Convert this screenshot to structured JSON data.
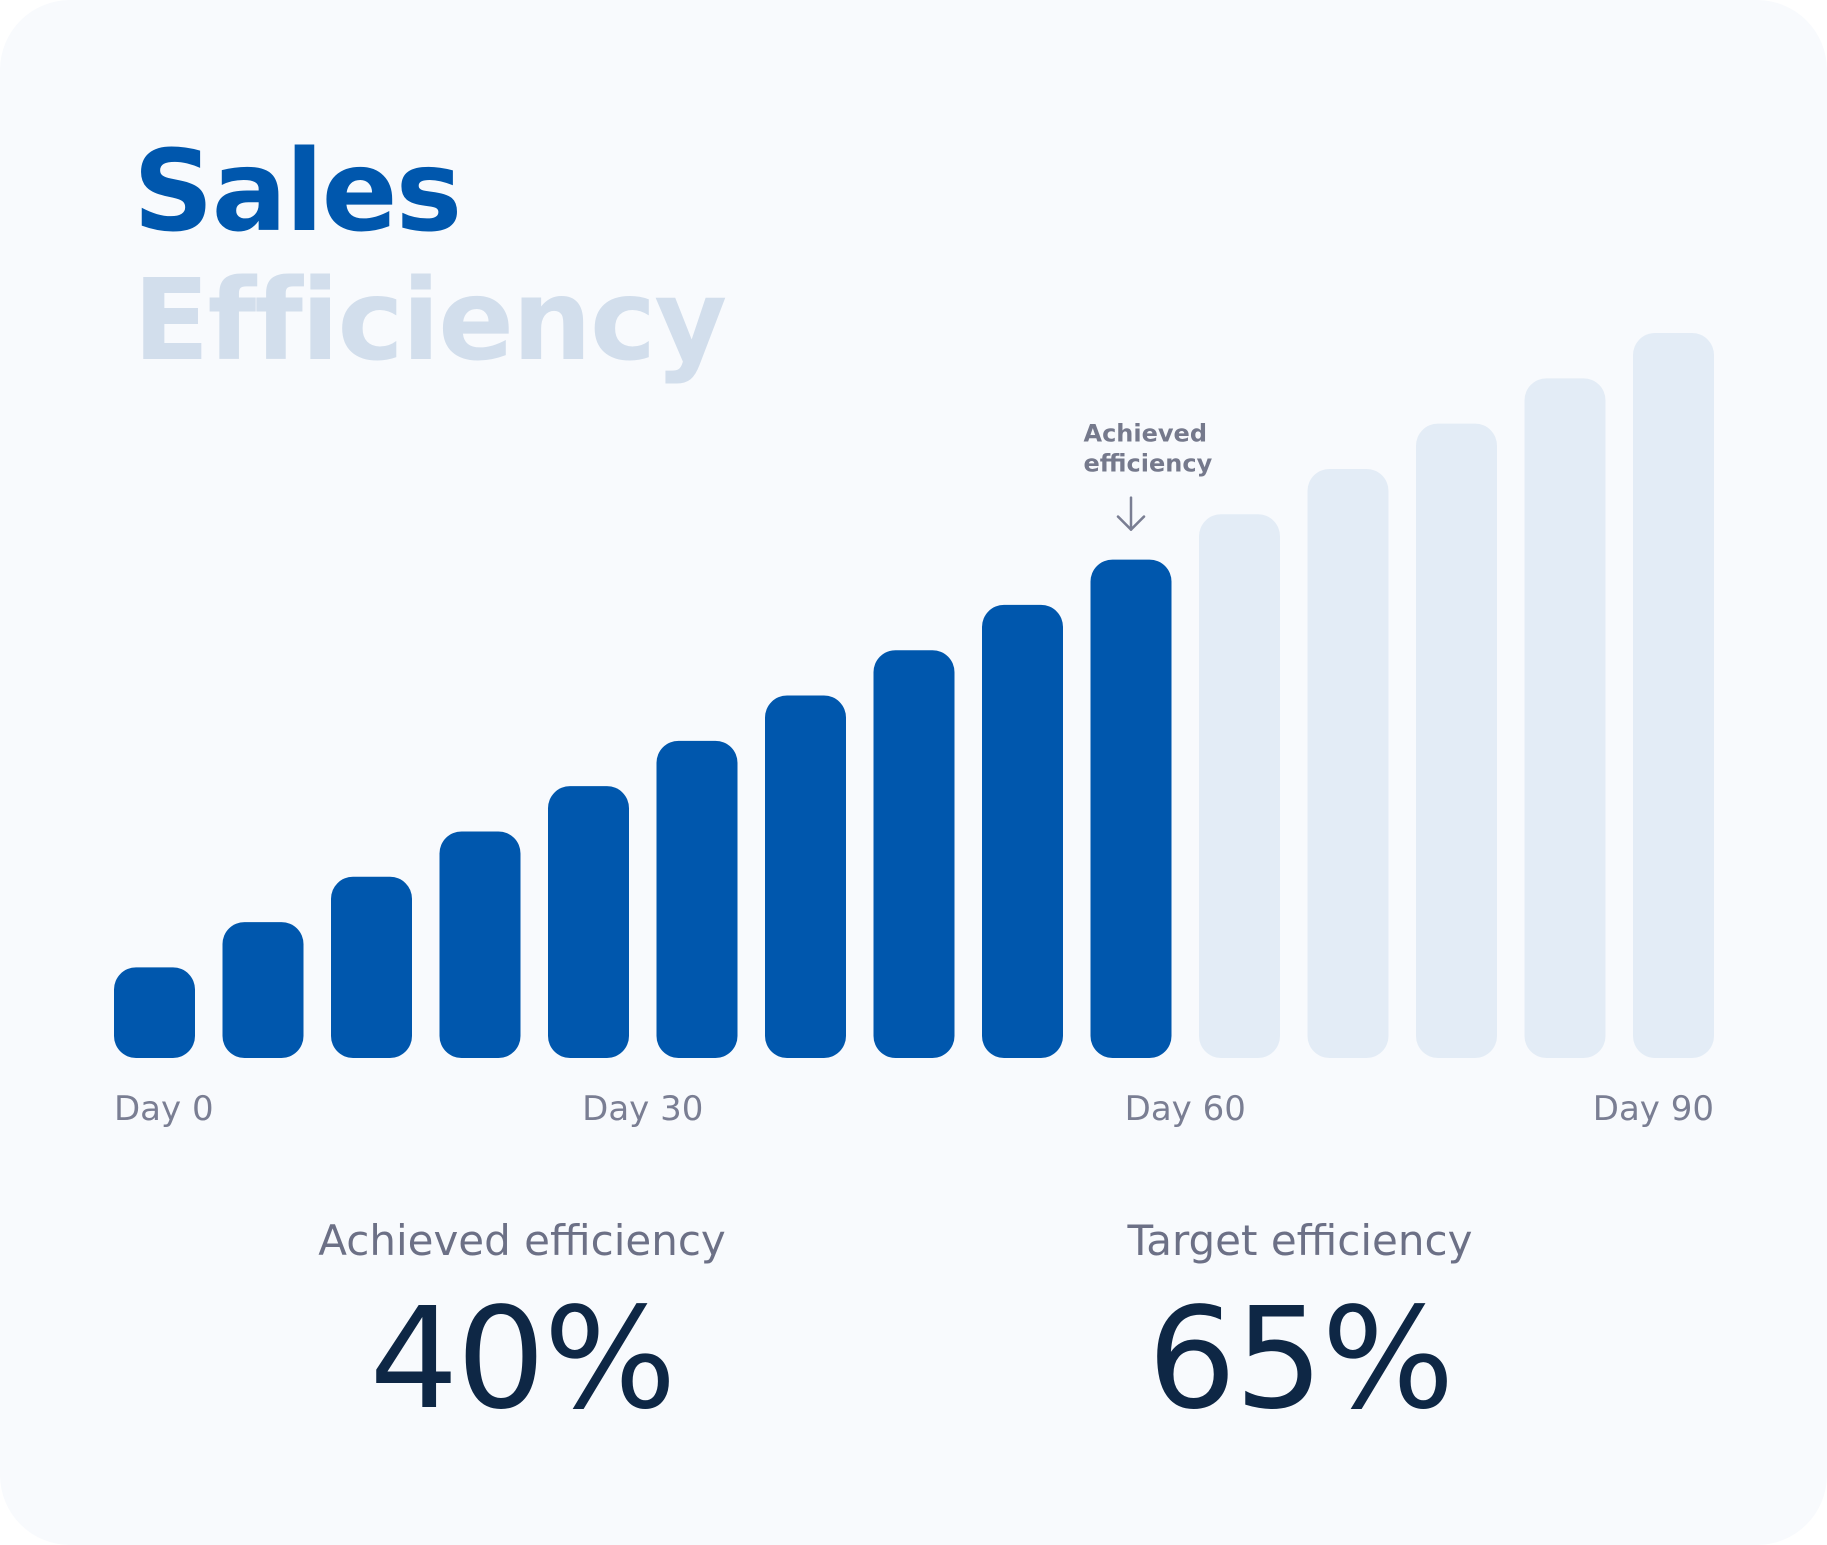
{
  "title": {
    "line1": "Sales",
    "line2": "Efficiency"
  },
  "stats": {
    "achieved_label": "Achieved efficiency",
    "achieved_value": "40%",
    "target_label": "Target efficiency",
    "target_value": "65%"
  },
  "colors": {
    "accent": "#0057ad",
    "muted_bar": "#e3ecf6",
    "title_muted": "#d2deec",
    "text_dark": "#0e2745",
    "text_gray": "#7a7e93"
  },
  "chart_data": {
    "type": "bar",
    "title": "Sales Efficiency",
    "xlabel": "",
    "ylabel": "",
    "ylim": [
      0,
      16
    ],
    "tick_labels": [
      "Day 0",
      "Day 30",
      "Day 60",
      "Day 90"
    ],
    "tick_bar_index": [
      0,
      4.5,
      9.5,
      14
    ],
    "series": [
      {
        "name": "Achieved efficiency",
        "values": [
          2,
          3,
          4,
          5,
          6,
          7,
          8,
          9,
          10,
          11
        ]
      },
      {
        "name": "Target efficiency",
        "values": [
          12,
          13,
          14,
          15,
          16
        ]
      }
    ],
    "annotation": {
      "text_line1": "Achieved",
      "text_line2": "efficiency",
      "bar_index": 9
    }
  }
}
